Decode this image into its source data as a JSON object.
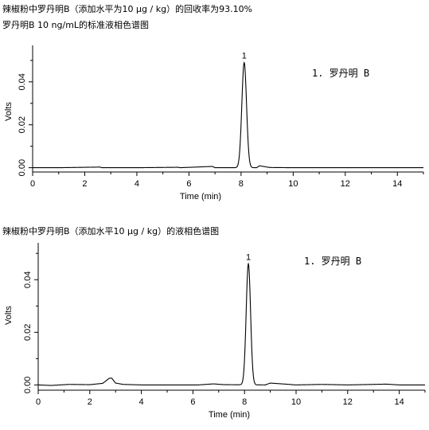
{
  "captions": {
    "top_line1": "辣椒粉中罗丹明B（添加水平为10 μg / kg）的回收率为93.10%",
    "top_line2": "罗丹明B 10 ng/mL的标准液相色谱图",
    "bottom": "辣椒粉中罗丹明B（添加水平10 μg / kg）的液相色谱图"
  },
  "colors": {
    "trace": "#000000",
    "axis": "#000000"
  },
  "chart_data": [
    {
      "type": "line",
      "xlabel": "Time (min)",
      "ylabel": "Volts",
      "xlim": [
        0,
        15
      ],
      "ylim": [
        -0.002,
        0.057
      ],
      "xticks": [
        0,
        2,
        4,
        6,
        8,
        10,
        12,
        14
      ],
      "yticks": [
        0.0,
        0.02,
        0.04
      ],
      "ytick_labels": [
        "0.00",
        "0.02",
        "0.04"
      ],
      "grid": false,
      "legend": "1. 罗丹明 B",
      "peaks": [
        {
          "label": "1",
          "x": 8.12,
          "height": 0.049,
          "sigma": 0.09
        }
      ],
      "baseline": [
        [
          0,
          0.0
        ],
        [
          1,
          0.0
        ],
        [
          2.6,
          0.0003
        ],
        [
          2.65,
          0.0
        ],
        [
          4,
          0.0
        ],
        [
          5.6,
          0.0002
        ],
        [
          5.65,
          0.0
        ],
        [
          6.9,
          0.0006
        ],
        [
          7.0,
          0.0
        ],
        [
          8.6,
          0.0
        ],
        [
          8.7,
          0.0009
        ],
        [
          9.1,
          0.0001
        ],
        [
          10,
          0.0
        ],
        [
          12,
          0.0
        ],
        [
          15,
          0.0
        ]
      ]
    },
    {
      "type": "line",
      "xlabel": "Time (min)",
      "ylabel": "Volts",
      "xlim": [
        0,
        15
      ],
      "ylim": [
        -0.002,
        0.054
      ],
      "xticks": [
        0,
        2,
        4,
        6,
        8,
        10,
        12,
        14
      ],
      "yticks": [
        0.0,
        0.02,
        0.04
      ],
      "ytick_labels": [
        "0.00",
        "0.02",
        "0.04"
      ],
      "grid": false,
      "legend": "1. 罗丹明 B",
      "peaks": [
        {
          "label": "1",
          "x": 8.15,
          "height": 0.046,
          "sigma": 0.085
        }
      ],
      "baseline": [
        [
          0,
          0.0
        ],
        [
          0.5,
          -0.0002
        ],
        [
          1.2,
          0.0002
        ],
        [
          2.0,
          0.0001
        ],
        [
          2.5,
          0.0006
        ],
        [
          2.75,
          0.0025
        ],
        [
          2.85,
          0.0026
        ],
        [
          3.0,
          0.0007
        ],
        [
          3.3,
          0.0002
        ],
        [
          4,
          0.0
        ],
        [
          5,
          0.0
        ],
        [
          6.2,
          0.0
        ],
        [
          6.8,
          0.0004
        ],
        [
          7.2,
          0.0001
        ],
        [
          8.8,
          0.0
        ],
        [
          9.0,
          0.0007
        ],
        [
          9.6,
          0.0003
        ],
        [
          10,
          0.0
        ],
        [
          11,
          0.0002
        ],
        [
          12,
          0.0
        ],
        [
          13.5,
          0.0003
        ],
        [
          14,
          0.0
        ],
        [
          15,
          0.0
        ]
      ]
    }
  ]
}
